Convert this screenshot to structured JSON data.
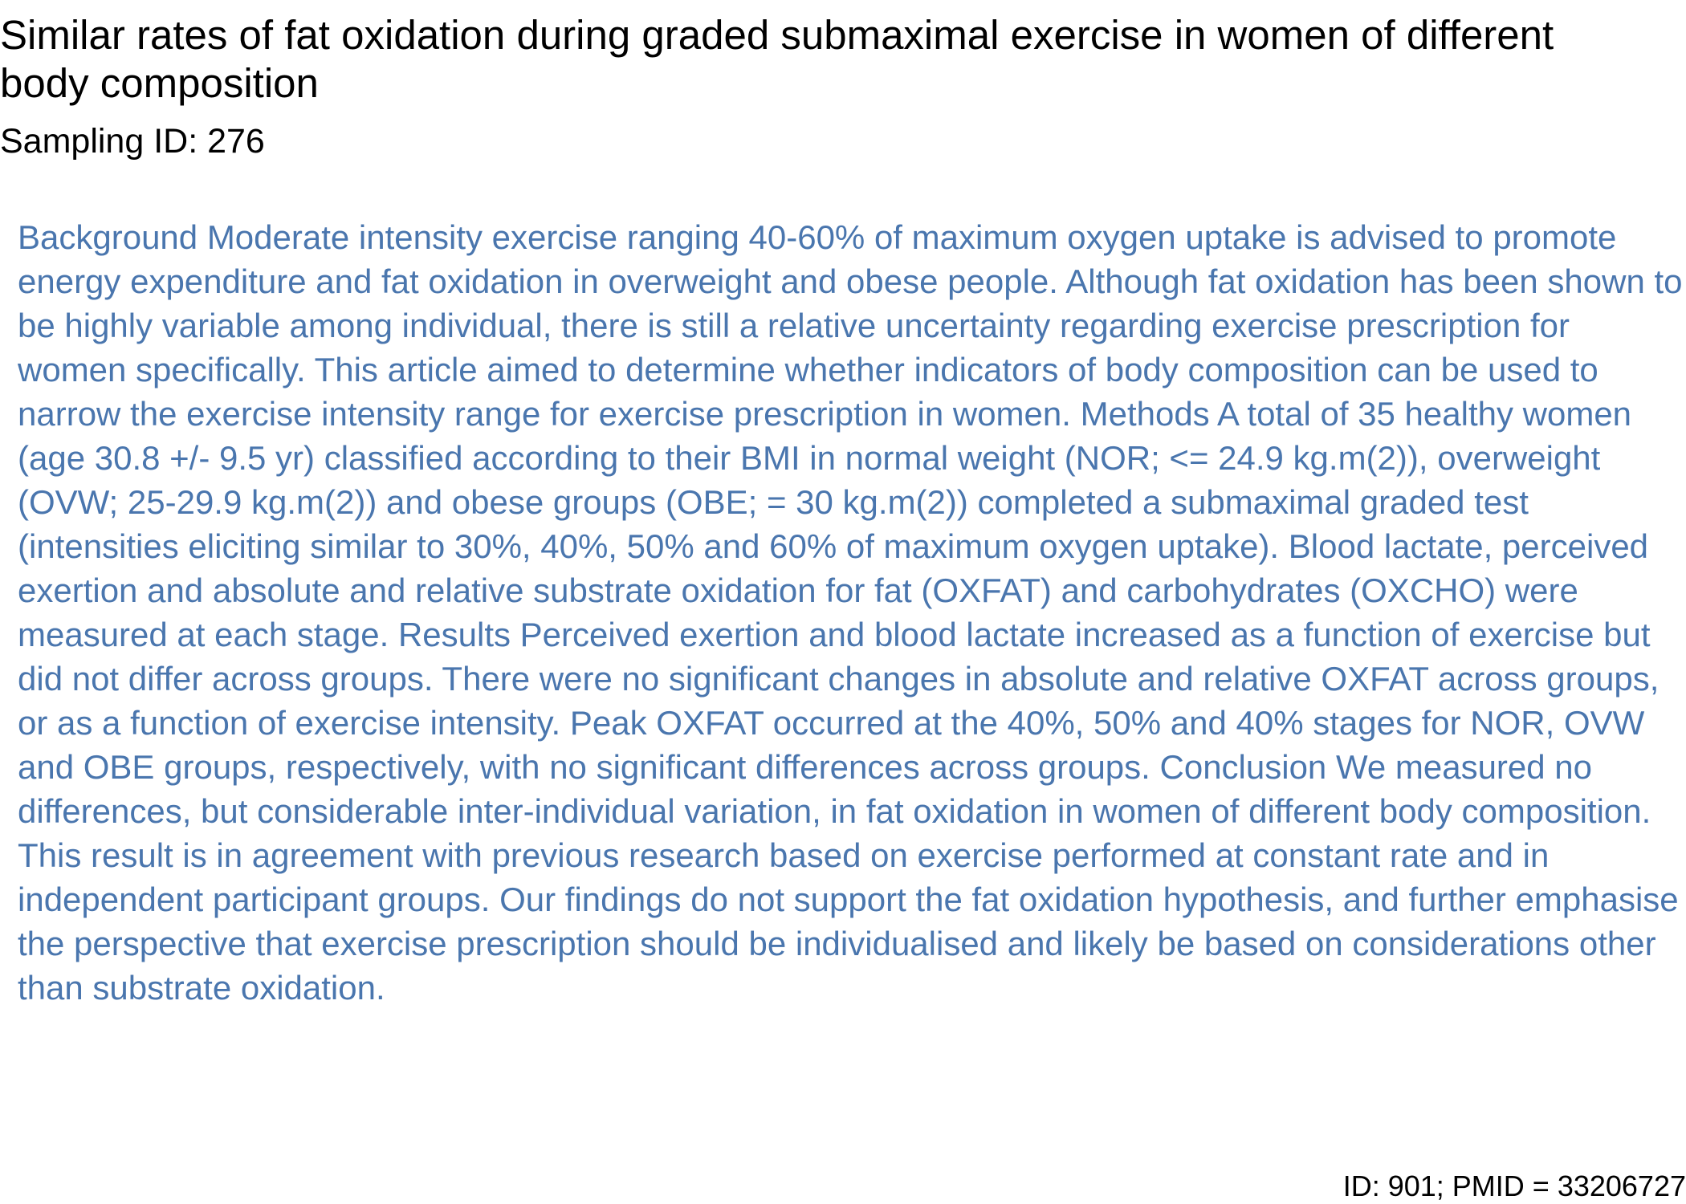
{
  "document": {
    "title": "Similar rates of fat oxidation during graded submaximal exercise in women of different body composition",
    "sampling_id": "Sampling ID: 276",
    "abstract": "Background Moderate intensity exercise ranging 40-60% of maximum oxygen uptake is advised to promote energy expenditure and fat oxidation in overweight and obese people. Although fat oxidation has been shown to be highly variable among individual, there is still a relative uncertainty regarding exercise prescription for women specifically. This article aimed to determine whether indicators of body composition can be used to narrow the exercise intensity range for exercise prescription in women. Methods A total of 35 healthy women (age 30.8 +/- 9.5 yr) classified according to their BMI in normal weight (NOR; <= 24.9 kg.m(2)), overweight (OVW; 25-29.9 kg.m(2)) and obese groups (OBE; = 30 kg.m(2)) completed a submaximal graded test (intensities eliciting similar to 30%, 40%, 50% and 60% of maximum oxygen uptake). Blood lactate, perceived exertion and absolute and relative substrate oxidation for fat (OXFAT) and carbohydrates (OXCHO) were measured at each stage. Results Perceived exertion and blood lactate increased as a function of exercise but did not differ across groups. There were no significant changes in absolute and relative OXFAT across groups, or as a function of exercise intensity. Peak OXFAT occurred at the 40%, 50% and 40% stages for NOR, OVW and OBE groups, respectively, with no significant differences across groups. Conclusion We measured no differences, but considerable inter-individual variation, in fat oxidation in women of different body composition. This result is in agreement with previous research based on exercise performed at constant rate and in independent participant groups. Our findings do not support the fat oxidation hypothesis, and further emphasise the perspective that exercise prescription should be individualised and likely be based on considerations other than substrate oxidation.",
    "footer": "ID: 901; PMID = 33206727"
  },
  "colors": {
    "title_text": "#000000",
    "abstract_text": "#4a76ae",
    "background": "#ffffff"
  }
}
